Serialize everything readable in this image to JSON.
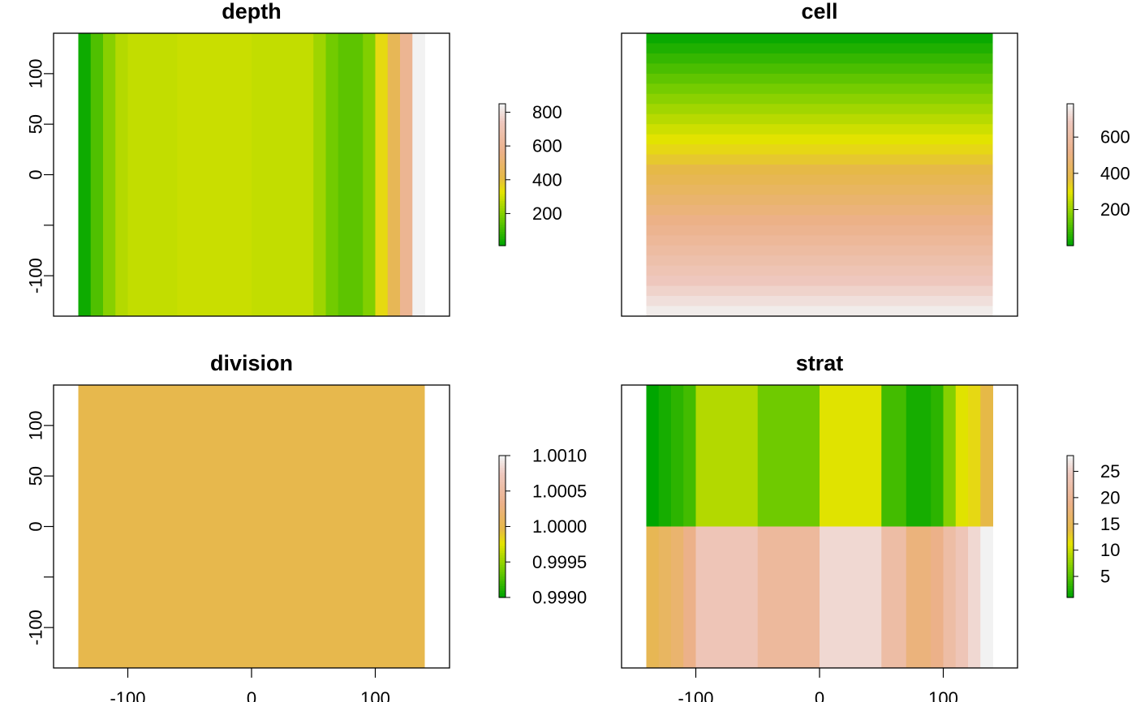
{
  "chart_data": [
    {
      "type": "heatmap",
      "title": "depth",
      "xlim": [
        -160,
        160
      ],
      "ylim": [
        -140,
        140
      ],
      "x_ticks": [
        -100,
        0,
        100
      ],
      "x_tick_labels_visible": false,
      "y_ticks": [
        -100,
        -50,
        0,
        50,
        100
      ],
      "y_tick_labels": [
        "-100",
        "",
        "0",
        "50",
        "100"
      ],
      "raster_extent": {
        "x": [
          -140,
          140
        ],
        "y": [
          -140,
          140
        ]
      },
      "orientation": "columns",
      "legend": {
        "position": "right",
        "range": [
          10,
          850
        ],
        "ticks": [
          200,
          400,
          600,
          800
        ],
        "tick_labels": [
          "200",
          "400",
          "600",
          "800"
        ]
      },
      "bands": [
        {
          "from": -140,
          "to": -130,
          "value": 30
        },
        {
          "from": -130,
          "to": -120,
          "value": 120
        },
        {
          "from": -120,
          "to": -110,
          "value": 200
        },
        {
          "from": -110,
          "to": -100,
          "value": 260
        },
        {
          "from": -100,
          "to": -60,
          "value": 280
        },
        {
          "from": -60,
          "to": 0,
          "value": 290
        },
        {
          "from": 0,
          "to": 50,
          "value": 280
        },
        {
          "from": 50,
          "to": 60,
          "value": 230
        },
        {
          "from": 60,
          "to": 70,
          "value": 170
        },
        {
          "from": 70,
          "to": 90,
          "value": 140
        },
        {
          "from": 90,
          "to": 100,
          "value": 190
        },
        {
          "from": 100,
          "to": 110,
          "value": 350
        },
        {
          "from": 110,
          "to": 120,
          "value": 450
        },
        {
          "from": 120,
          "to": 130,
          "value": 600
        },
        {
          "from": 130,
          "to": 140,
          "value": 850
        }
      ]
    },
    {
      "type": "heatmap",
      "title": "cell",
      "xlim": [
        -160,
        160
      ],
      "ylim": [
        -140,
        140
      ],
      "x_ticks": [
        -100,
        0,
        100
      ],
      "x_tick_labels_visible": false,
      "y_ticks": [
        -100,
        -50,
        0,
        50,
        100
      ],
      "y_tick_labels_visible": false,
      "raster_extent": {
        "x": [
          -140,
          140
        ],
        "y": [
          -140,
          140
        ]
      },
      "orientation": "rows",
      "legend": {
        "position": "right",
        "range": [
          1,
          784
        ],
        "ticks": [
          200,
          400,
          600
        ],
        "tick_labels": [
          "200",
          "400",
          "600"
        ]
      },
      "rows": 28,
      "row_values_top_to_bottom": [
        14,
        42,
        70,
        98,
        126,
        154,
        182,
        210,
        238,
        266,
        294,
        322,
        350,
        378,
        406,
        434,
        462,
        490,
        518,
        546,
        574,
        602,
        630,
        658,
        686,
        714,
        742,
        770
      ]
    },
    {
      "type": "heatmap",
      "title": "division",
      "xlim": [
        -160,
        160
      ],
      "ylim": [
        -140,
        140
      ],
      "x_ticks": [
        -100,
        0,
        100
      ],
      "x_tick_labels": [
        "-100",
        "0",
        "100"
      ],
      "y_ticks": [
        -100,
        -50,
        0,
        50,
        100
      ],
      "y_tick_labels": [
        "-100",
        "",
        "0",
        "50",
        "100"
      ],
      "raster_extent": {
        "x": [
          -140,
          140
        ],
        "y": [
          -140,
          140
        ]
      },
      "orientation": "single",
      "legend": {
        "position": "right",
        "range": [
          0.999,
          1.001
        ],
        "ticks": [
          0.999,
          0.9995,
          1.0,
          1.0005,
          1.001
        ],
        "tick_labels": [
          "0.9990",
          "0.9995",
          "1.0000",
          "1.0005",
          "1.0010"
        ]
      },
      "value": 1
    },
    {
      "type": "heatmap",
      "title": "strat",
      "xlim": [
        -160,
        160
      ],
      "ylim": [
        -140,
        140
      ],
      "x_ticks": [
        -100,
        0,
        100
      ],
      "x_tick_labels": [
        "-100",
        "0",
        "100"
      ],
      "y_ticks": [
        -100,
        -50,
        0,
        50,
        100
      ],
      "y_tick_labels_visible": false,
      "raster_extent": {
        "x": [
          -140,
          140
        ],
        "y": [
          -140,
          140
        ]
      },
      "orientation": "grid",
      "legend": {
        "position": "right",
        "range": [
          1,
          28
        ],
        "ticks": [
          5,
          10,
          15,
          20,
          25
        ],
        "tick_labels": [
          "5",
          "10",
          "15",
          "20",
          "25"
        ]
      },
      "column_edges": [
        -140,
        -130,
        -120,
        -110,
        -100,
        -50,
        0,
        50,
        70,
        90,
        100,
        110,
        120,
        130,
        140
      ],
      "row_split_y": 0,
      "top_values": [
        1,
        2,
        3,
        4,
        9,
        6,
        11,
        4,
        2,
        3,
        7,
        11,
        12,
        14
      ],
      "bottom_values": [
        15,
        16,
        17,
        19,
        24,
        21,
        26,
        22,
        18,
        19,
        22,
        24,
        26,
        28
      ]
    }
  ]
}
